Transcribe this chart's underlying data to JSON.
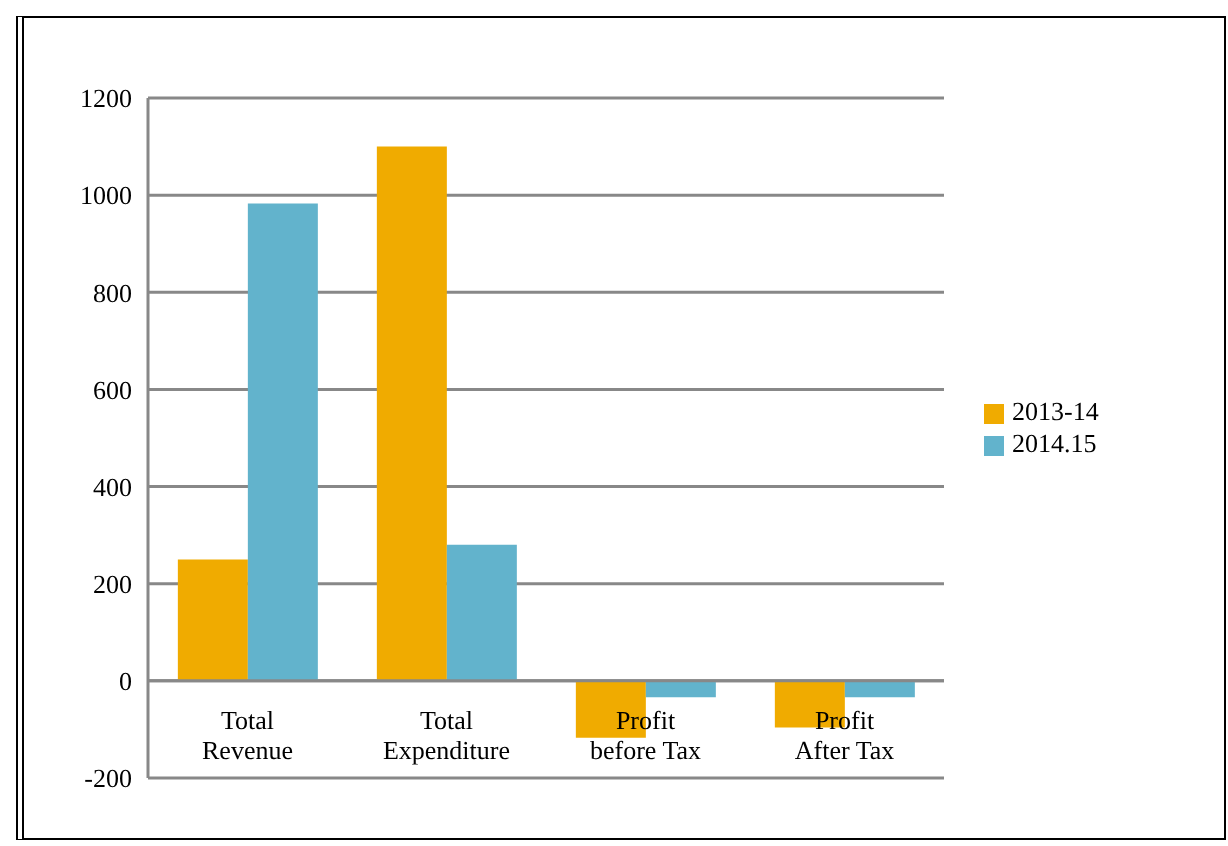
{
  "chart_data": {
    "type": "bar",
    "categories": [
      "Total Revenue",
      "Total Expenditure",
      "Profit before Tax",
      "Profit After Tax"
    ],
    "series": [
      {
        "name": "2013-14",
        "color": "#f0ab00",
        "values": [
          250,
          1100,
          -117,
          -96
        ]
      },
      {
        "name": "2014.15",
        "color": "#62b3cc",
        "values": [
          983,
          280,
          -34,
          -34
        ]
      }
    ],
    "ylim": [
      -200,
      1200
    ],
    "yticks": [
      -200,
      0,
      200,
      400,
      600,
      800,
      1000,
      1200
    ],
    "grid": "y",
    "legend": "right"
  }
}
